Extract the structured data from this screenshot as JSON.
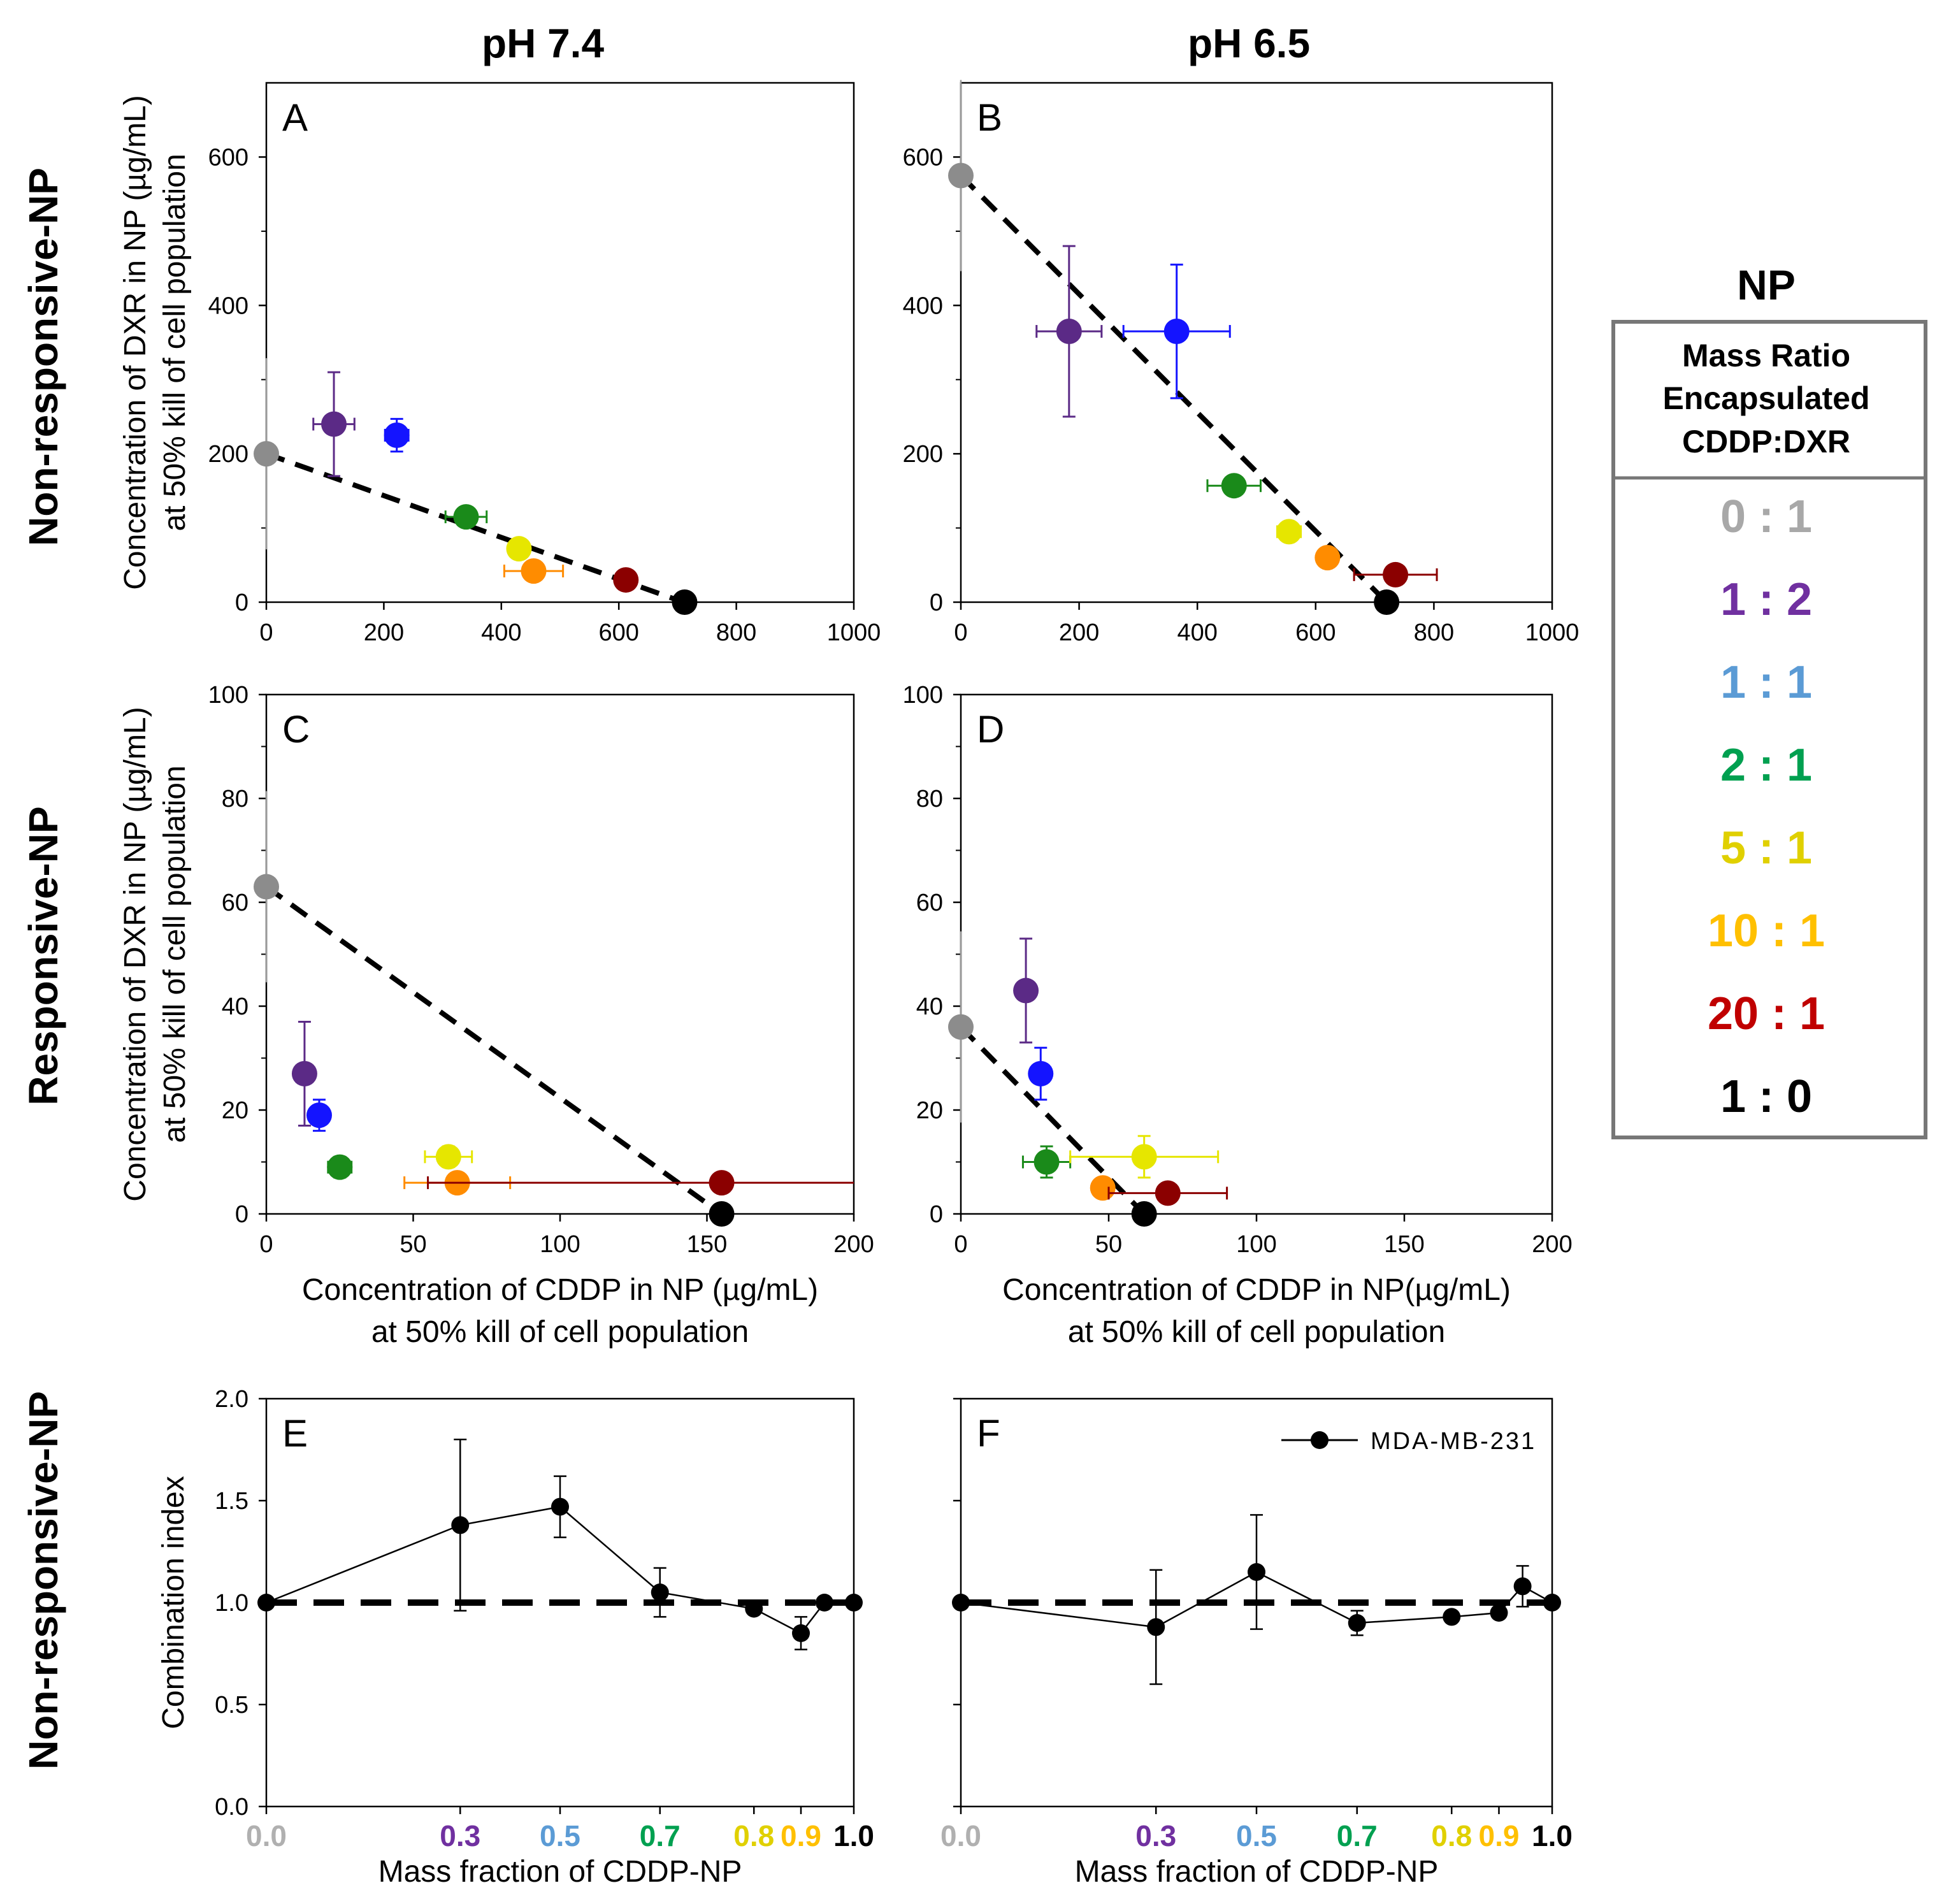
{
  "columns": [
    "pH 7.4",
    "pH 6.5"
  ],
  "row_labels": [
    "Non-responsive-NP",
    "Responsive-NP",
    "Non-responsive-NP"
  ],
  "ratio_legend": {
    "title": "NP",
    "header": [
      "Mass Ratio",
      "Encapsulated",
      "CDDP:DXR"
    ],
    "entries": [
      {
        "label": "0 : 1",
        "color": "#a8a8a8"
      },
      {
        "label": "1 : 2",
        "color": "#7030a0"
      },
      {
        "label": "1 : 1",
        "color": "#5b9bd5"
      },
      {
        "label": "2 : 1",
        "color": "#00a050"
      },
      {
        "label": "5 : 1",
        "color": "#e0d000"
      },
      {
        "label": "10 : 1",
        "color": "#ffc000"
      },
      {
        "label": "20 : 1",
        "color": "#c00000"
      },
      {
        "label": "1 : 0",
        "color": "#000000"
      }
    ]
  },
  "chart_data": [
    {
      "id": "A",
      "type": "scatter",
      "letter": "A",
      "column": "pH 7.4",
      "xlim": [
        0,
        1000
      ],
      "ylim": [
        0,
        700
      ],
      "xticks": [
        "0",
        "200",
        "400",
        "600",
        "800",
        "1000"
      ],
      "yticks": [
        "0",
        "200",
        "400",
        "600"
      ],
      "ylabel": [
        "Concentration of DXR in NP (µg/mL)",
        "at 50% kill of cell population"
      ],
      "xlabel": [],
      "isobole": [
        [
          0,
          200
        ],
        [
          710,
          0
        ]
      ],
      "points": [
        {
          "ratio": "0 : 1",
          "x": 0,
          "y": 200,
          "xerr": 0,
          "yerr": 0,
          "color": "#8c8c8c"
        },
        {
          "ratio": "1 : 2",
          "x": 115,
          "y": 240,
          "xerr": 35,
          "yerr": 70,
          "color": "#5b2a86"
        },
        {
          "ratio": "1 : 1",
          "x": 222,
          "y": 225,
          "xerr": 20,
          "yerr": 22,
          "color": "#1414ff"
        },
        {
          "ratio": "2 : 1",
          "x": 340,
          "y": 115,
          "xerr": 35,
          "yerr": 10,
          "color": "#1a8a1a"
        },
        {
          "ratio": "5 : 1",
          "x": 430,
          "y": 72,
          "xerr": 10,
          "yerr": 5,
          "color": "#e6e600"
        },
        {
          "ratio": "10 : 1",
          "x": 455,
          "y": 42,
          "xerr": 50,
          "yerr": 5,
          "color": "#ff8c00"
        },
        {
          "ratio": "20 : 1",
          "x": 612,
          "y": 30,
          "xerr": 10,
          "yerr": 5,
          "color": "#8b0000"
        },
        {
          "ratio": "1 : 0",
          "x": 712,
          "y": 0,
          "xerr": 0,
          "yerr": 0,
          "color": "#000000"
        }
      ]
    },
    {
      "id": "B",
      "type": "scatter",
      "letter": "B",
      "column": "pH 6.5",
      "xlim": [
        0,
        1000
      ],
      "ylim": [
        0,
        700
      ],
      "xticks": [
        "0",
        "200",
        "400",
        "600",
        "800",
        "1000"
      ],
      "yticks": [
        "0",
        "200",
        "400",
        "600"
      ],
      "ylabel": [],
      "xlabel": [],
      "isobole": [
        [
          0,
          575
        ],
        [
          720,
          0
        ]
      ],
      "points": [
        {
          "ratio": "0 : 1",
          "x": 0,
          "y": 575,
          "xerr": 0,
          "yerr": 0,
          "color": "#8c8c8c"
        },
        {
          "ratio": "1 : 2",
          "x": 183,
          "y": 365,
          "xerr": 55,
          "yerr": 115,
          "color": "#5b2a86"
        },
        {
          "ratio": "1 : 1",
          "x": 365,
          "y": 365,
          "xerr": 90,
          "yerr": 90,
          "color": "#1414ff"
        },
        {
          "ratio": "2 : 1",
          "x": 462,
          "y": 157,
          "xerr": 45,
          "yerr": 10,
          "color": "#1a8a1a"
        },
        {
          "ratio": "5 : 1",
          "x": 555,
          "y": 95,
          "xerr": 20,
          "yerr": 8,
          "color": "#e6e600"
        },
        {
          "ratio": "10 : 1",
          "x": 620,
          "y": 60,
          "xerr": 15,
          "yerr": 5,
          "color": "#ff8c00"
        },
        {
          "ratio": "20 : 1",
          "x": 735,
          "y": 37,
          "xerr": 70,
          "yerr": 8,
          "color": "#8b0000"
        },
        {
          "ratio": "1 : 0",
          "x": 720,
          "y": 0,
          "xerr": 0,
          "yerr": 0,
          "color": "#000000"
        }
      ]
    },
    {
      "id": "C",
      "type": "scatter",
      "letter": "C",
      "column": "pH 7.4",
      "xlim": [
        0,
        200
      ],
      "ylim": [
        0,
        100
      ],
      "xticks": [
        "0",
        "50",
        "100",
        "150",
        "200"
      ],
      "yticks": [
        "0",
        "20",
        "40",
        "60",
        "80",
        "100"
      ],
      "ylabel": [
        "Concentration of DXR in NP (µg/mL)",
        "at 50% kill of cell population"
      ],
      "xlabel": [
        "Concentration of CDDP in NP (µg/mL)",
        "at 50% kill of cell population"
      ],
      "isobole": [
        [
          0,
          63
        ],
        [
          155,
          0
        ]
      ],
      "points": [
        {
          "ratio": "0 : 1",
          "x": 0,
          "y": 63,
          "xerr": 0,
          "yerr": 0,
          "color": "#8c8c8c"
        },
        {
          "ratio": "1 : 2",
          "x": 13,
          "y": 27,
          "xerr": 3,
          "yerr": 10,
          "color": "#5b2a86"
        },
        {
          "ratio": "1 : 1",
          "x": 18,
          "y": 19,
          "xerr": 3,
          "yerr": 3,
          "color": "#1414ff"
        },
        {
          "ratio": "2 : 1",
          "x": 25,
          "y": 9,
          "xerr": 4,
          "yerr": 2,
          "color": "#1a8a1a"
        },
        {
          "ratio": "5 : 1",
          "x": 62,
          "y": 11,
          "xerr": 8,
          "yerr": 2,
          "color": "#e6e600"
        },
        {
          "ratio": "10 : 1",
          "x": 65,
          "y": 6,
          "xerr": 18,
          "yerr": 1,
          "color": "#ff8c00"
        },
        {
          "ratio": "20 : 1",
          "x": 155,
          "y": 6,
          "xerr": 100,
          "yerr": 1,
          "color": "#8b0000"
        },
        {
          "ratio": "1 : 0",
          "x": 155,
          "y": 0,
          "xerr": 0,
          "yerr": 0,
          "color": "#000000"
        }
      ]
    },
    {
      "id": "D",
      "type": "scatter",
      "letter": "D",
      "column": "pH 6.5",
      "xlim": [
        0,
        200
      ],
      "ylim": [
        0,
        100
      ],
      "xticks": [
        "0",
        "50",
        "100",
        "150",
        "200"
      ],
      "yticks": [
        "0",
        "20",
        "40",
        "60",
        "80",
        "100"
      ],
      "ylabel": [],
      "xlabel": [
        "Concentration of CDDP in NP(µg/mL)",
        "at 50% kill of cell population"
      ],
      "isobole": [
        [
          0,
          36
        ],
        [
          62,
          0
        ]
      ],
      "points": [
        {
          "ratio": "0 : 1",
          "x": 0,
          "y": 36,
          "xerr": 0,
          "yerr": 0,
          "color": "#8c8c8c"
        },
        {
          "ratio": "1 : 2",
          "x": 22,
          "y": 43,
          "xerr": 3,
          "yerr": 10,
          "color": "#5b2a86"
        },
        {
          "ratio": "1 : 1",
          "x": 27,
          "y": 27,
          "xerr": 3,
          "yerr": 5,
          "color": "#1414ff"
        },
        {
          "ratio": "2 : 1",
          "x": 29,
          "y": 10,
          "xerr": 8,
          "yerr": 3,
          "color": "#1a8a1a"
        },
        {
          "ratio": "5 : 1",
          "x": 62,
          "y": 11,
          "xerr": 25,
          "yerr": 4,
          "color": "#e6e600"
        },
        {
          "ratio": "10 : 1",
          "x": 48,
          "y": 5,
          "xerr": 3,
          "yerr": 1,
          "color": "#ff8c00"
        },
        {
          "ratio": "20 : 1",
          "x": 70,
          "y": 4,
          "xerr": 20,
          "yerr": 1,
          "color": "#8b0000"
        },
        {
          "ratio": "1 : 0",
          "x": 62,
          "y": 0,
          "xerr": 0,
          "yerr": 0,
          "color": "#000000"
        }
      ]
    },
    {
      "id": "E",
      "type": "line",
      "letter": "E",
      "column": "pH 7.4",
      "xlim": [
        0,
        1
      ],
      "ylim": [
        0,
        2
      ],
      "yticks": [
        "0.0",
        "0.5",
        "1.0",
        "1.5",
        "2.0"
      ],
      "ylabel": [
        "Combination index"
      ],
      "xlabel": [
        "Mass fraction of CDDP-NP"
      ],
      "xticks": [
        {
          "x": 0.0,
          "label": "0.0",
          "color": "#b0b0b0"
        },
        {
          "x": 0.33,
          "label": "0.3",
          "color": "#7030a0"
        },
        {
          "x": 0.5,
          "label": "0.5",
          "color": "#5b9bd5"
        },
        {
          "x": 0.67,
          "label": "0.7",
          "color": "#00a050"
        },
        {
          "x": 0.83,
          "label": "0.8",
          "color": "#e0d000"
        },
        {
          "x": 0.91,
          "label": "0.9",
          "color": "#ffc000"
        },
        {
          "x": 1.0,
          "label": "1.0",
          "color": "#000000"
        }
      ],
      "reference": 1.0,
      "series": [
        {
          "name": "MDA-MB-231",
          "x": [
            0.0,
            0.33,
            0.5,
            0.67,
            0.83,
            0.91,
            0.95,
            1.0
          ],
          "y": [
            1.0,
            1.38,
            1.47,
            1.05,
            0.97,
            0.85,
            1.0,
            1.0
          ],
          "err": [
            0,
            0.42,
            0.15,
            0.12,
            0,
            0.08,
            0,
            0
          ]
        }
      ]
    },
    {
      "id": "F",
      "type": "line",
      "letter": "F",
      "column": "pH 6.5",
      "xlim": [
        0,
        1
      ],
      "ylim": [
        0,
        2
      ],
      "yticks": [
        "",
        "",
        "",
        "",
        ""
      ],
      "ylabel": [],
      "xlabel": [
        "Mass fraction of CDDP-NP"
      ],
      "xticks": [
        {
          "x": 0.0,
          "label": "0.0",
          "color": "#b0b0b0"
        },
        {
          "x": 0.33,
          "label": "0.3",
          "color": "#7030a0"
        },
        {
          "x": 0.5,
          "label": "0.5",
          "color": "#5b9bd5"
        },
        {
          "x": 0.67,
          "label": "0.7",
          "color": "#00a050"
        },
        {
          "x": 0.83,
          "label": "0.8",
          "color": "#e0d000"
        },
        {
          "x": 0.91,
          "label": "0.9",
          "color": "#ffc000"
        },
        {
          "x": 1.0,
          "label": "1.0",
          "color": "#000000"
        }
      ],
      "reference": 1.0,
      "legend": "MDA-MB-231",
      "series": [
        {
          "name": "MDA-MB-231",
          "x": [
            0.0,
            0.33,
            0.5,
            0.67,
            0.83,
            0.91,
            0.95,
            1.0
          ],
          "y": [
            1.0,
            0.88,
            1.15,
            0.9,
            0.93,
            0.95,
            1.08,
            1.0
          ],
          "err": [
            0,
            0.28,
            0.28,
            0.06,
            0,
            0,
            0.1,
            0
          ]
        }
      ]
    }
  ]
}
